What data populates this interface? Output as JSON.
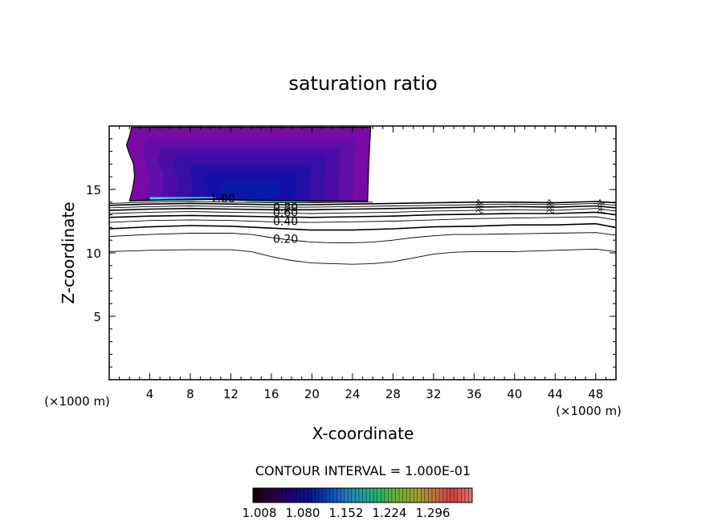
{
  "chart_data": {
    "type": "contour",
    "title": "saturation ratio",
    "xlabel": "X-coordinate",
    "ylabel": "Z-coordinate",
    "x_unit": "(×1000 m)",
    "y_unit": "(×1000 m)",
    "xlim": [
      0,
      50
    ],
    "ylim": [
      0,
      20
    ],
    "x_ticks": [
      4,
      8,
      12,
      16,
      20,
      24,
      28,
      32,
      36,
      40,
      44,
      48
    ],
    "y_ticks": [
      5,
      10,
      15
    ],
    "contour_interval_text": "CONTOUR INTERVAL = 1.000E-01",
    "contour_labels": [
      {
        "text": "1.00",
        "x": 11.2,
        "z": 14.3
      },
      {
        "text": "0.80",
        "x": 17.4,
        "z": 13.6
      },
      {
        "text": "0.60",
        "x": 17.4,
        "z": 13.2
      },
      {
        "text": "0.40",
        "x": 17.4,
        "z": 12.5
      },
      {
        "text": "0.20",
        "x": 17.4,
        "z": 11.1
      }
    ],
    "contour_lines": [
      {
        "level": 0.0,
        "points": [
          [
            0,
            10.1
          ],
          [
            4,
            10.2
          ],
          [
            8,
            10.25
          ],
          [
            12,
            10.25
          ],
          [
            14,
            10.1
          ],
          [
            16,
            9.7
          ],
          [
            18,
            9.4
          ],
          [
            20,
            9.2
          ],
          [
            22,
            9.15
          ],
          [
            24,
            9.1
          ],
          [
            26,
            9.15
          ],
          [
            28,
            9.3
          ],
          [
            30,
            9.6
          ],
          [
            32,
            9.9
          ],
          [
            34,
            10.05
          ],
          [
            36,
            10.1
          ],
          [
            40,
            10.1
          ],
          [
            44,
            10.2
          ],
          [
            48,
            10.3
          ],
          [
            50,
            10.1
          ]
        ]
      },
      {
        "level": 0.1,
        "points": [
          [
            0,
            11.3
          ],
          [
            4,
            11.45
          ],
          [
            8,
            11.55
          ],
          [
            12,
            11.55
          ],
          [
            14,
            11.45
          ],
          [
            16,
            11.2
          ],
          [
            18,
            11.0
          ],
          [
            20,
            10.85
          ],
          [
            22,
            10.8
          ],
          [
            24,
            10.8
          ],
          [
            26,
            10.85
          ],
          [
            28,
            11.0
          ],
          [
            30,
            11.2
          ],
          [
            32,
            11.35
          ],
          [
            34,
            11.45
          ],
          [
            36,
            11.45
          ],
          [
            40,
            11.5
          ],
          [
            44,
            11.55
          ],
          [
            48,
            11.6
          ],
          [
            50,
            11.4
          ]
        ]
      },
      {
        "level": 0.2,
        "points": [
          [
            0,
            11.9
          ],
          [
            4,
            12.05
          ],
          [
            8,
            12.15
          ],
          [
            12,
            12.1
          ],
          [
            16,
            11.95
          ],
          [
            20,
            11.8
          ],
          [
            24,
            11.8
          ],
          [
            28,
            11.9
          ],
          [
            32,
            12.05
          ],
          [
            36,
            12.1
          ],
          [
            40,
            12.2
          ],
          [
            44,
            12.2
          ],
          [
            48,
            12.3
          ],
          [
            50,
            12.0
          ]
        ]
      },
      {
        "level": 0.3,
        "points": [
          [
            0,
            12.4
          ],
          [
            4,
            12.55
          ],
          [
            8,
            12.6
          ],
          [
            12,
            12.55
          ],
          [
            16,
            12.45
          ],
          [
            20,
            12.4
          ],
          [
            24,
            12.45
          ],
          [
            28,
            12.5
          ],
          [
            32,
            12.6
          ],
          [
            36,
            12.7
          ],
          [
            40,
            12.75
          ],
          [
            44,
            12.8
          ],
          [
            48,
            12.85
          ],
          [
            50,
            12.6
          ]
        ]
      },
      {
        "level": 0.4,
        "points": [
          [
            0,
            12.8
          ],
          [
            4,
            12.9
          ],
          [
            8,
            12.95
          ],
          [
            12,
            12.9
          ],
          [
            16,
            12.85
          ],
          [
            20,
            12.8
          ],
          [
            24,
            12.85
          ],
          [
            28,
            12.9
          ],
          [
            32,
            13.0
          ],
          [
            36,
            13.05
          ],
          [
            40,
            13.1
          ],
          [
            44,
            13.1
          ],
          [
            48,
            13.2
          ],
          [
            50,
            13.0
          ]
        ]
      },
      {
        "level": 0.5,
        "points": [
          [
            0,
            13.1
          ],
          [
            4,
            13.2
          ],
          [
            8,
            13.25
          ],
          [
            12,
            13.2
          ],
          [
            16,
            13.15
          ],
          [
            20,
            13.1
          ],
          [
            24,
            13.15
          ],
          [
            28,
            13.2
          ],
          [
            32,
            13.3
          ],
          [
            36,
            13.35
          ],
          [
            40,
            13.4
          ],
          [
            44,
            13.35
          ],
          [
            48,
            13.5
          ],
          [
            50,
            13.3
          ]
        ]
      },
      {
        "level": 0.6,
        "points": [
          [
            0,
            13.35
          ],
          [
            4,
            13.45
          ],
          [
            8,
            13.5
          ],
          [
            12,
            13.45
          ],
          [
            16,
            13.4
          ],
          [
            20,
            13.4
          ],
          [
            24,
            13.45
          ],
          [
            28,
            13.5
          ],
          [
            32,
            13.55
          ],
          [
            36,
            13.6
          ],
          [
            40,
            13.65
          ],
          [
            44,
            13.6
          ],
          [
            48,
            13.7
          ],
          [
            50,
            13.55
          ]
        ]
      },
      {
        "level": 0.7,
        "points": [
          [
            0,
            13.55
          ],
          [
            4,
            13.65
          ],
          [
            8,
            13.7
          ],
          [
            12,
            13.65
          ],
          [
            16,
            13.6
          ],
          [
            20,
            13.6
          ],
          [
            24,
            13.65
          ],
          [
            28,
            13.7
          ],
          [
            32,
            13.75
          ],
          [
            36,
            13.8
          ],
          [
            40,
            13.85
          ],
          [
            44,
            13.8
          ],
          [
            48,
            13.9
          ],
          [
            50,
            13.75
          ]
        ]
      },
      {
        "level": 0.8,
        "points": [
          [
            0,
            13.75
          ],
          [
            4,
            13.85
          ],
          [
            8,
            13.9
          ],
          [
            12,
            13.85
          ],
          [
            16,
            13.8
          ],
          [
            20,
            13.8
          ],
          [
            24,
            13.85
          ],
          [
            28,
            13.9
          ],
          [
            32,
            13.95
          ],
          [
            36,
            14.0
          ],
          [
            40,
            14.0
          ],
          [
            44,
            13.95
          ],
          [
            48,
            14.05
          ],
          [
            50,
            13.95
          ]
        ]
      },
      {
        "level": 0.9,
        "points": [
          [
            0,
            13.9
          ],
          [
            4,
            14.0
          ],
          [
            8,
            14.05
          ],
          [
            12,
            14.0
          ],
          [
            16,
            13.95
          ],
          [
            20,
            13.95
          ],
          [
            24,
            14.0
          ],
          [
            26,
            14.0
          ]
        ]
      },
      {
        "level": 1.0,
        "points": [
          [
            2,
            14.1
          ],
          [
            6,
            14.2
          ],
          [
            10,
            14.25
          ],
          [
            14,
            14.15
          ],
          [
            18,
            14.1
          ],
          [
            22,
            14.1
          ],
          [
            25.5,
            14.05
          ]
        ]
      }
    ],
    "wiggles_at_x": [
      36.5,
      43.5,
      48.5
    ],
    "filled_region": {
      "description_levels": [
        1.008,
        1.08,
        1.152,
        1.224,
        1.296
      ],
      "outline": [
        [
          2.0,
          14.1
        ],
        [
          2.3,
          15.0
        ],
        [
          2.5,
          16.0
        ],
        [
          2.4,
          17.0
        ],
        [
          2.0,
          17.8
        ],
        [
          1.7,
          18.5
        ],
        [
          2.0,
          19.2
        ],
        [
          2.2,
          19.9
        ],
        [
          25.8,
          19.9
        ],
        [
          25.6,
          17.0
        ],
        [
          25.5,
          14.1
        ],
        [
          20.5,
          14.05
        ],
        [
          15.0,
          14.1
        ],
        [
          10.0,
          14.2
        ],
        [
          5.0,
          14.15
        ]
      ],
      "bands": [
        {
          "level": 1.008,
          "color": "#7a0aa6"
        },
        {
          "level": 1.044,
          "color": "#6010a8"
        },
        {
          "level": 1.08,
          "color": "#4a0ea4"
        },
        {
          "level": 1.116,
          "color": "#3610a6"
        },
        {
          "level": 1.152,
          "color": "#2210a8"
        },
        {
          "level": 1.188,
          "color": "#1410a8"
        },
        {
          "level": 1.224,
          "color": "#0a1aa6"
        }
      ],
      "highlight_strips": [
        {
          "x": [
            4.0,
            10.5
          ],
          "z": 14.3,
          "color": "#3ad0ff"
        },
        {
          "x": [
            13.5,
            19.5
          ],
          "z": 14.05,
          "color": "#3ad0ff"
        }
      ]
    },
    "colorbar": {
      "ticks": [
        "1.008",
        "1.080",
        "1.152",
        "1.224",
        "1.296"
      ],
      "colors": [
        "#1a0010",
        "#2a0040",
        "#1a0070",
        "#0a1090",
        "#0a40b0",
        "#2a70c0",
        "#20a0a0",
        "#30b060",
        "#70b030",
        "#a0a030",
        "#c07040",
        "#d04040",
        "#e07070"
      ]
    }
  }
}
